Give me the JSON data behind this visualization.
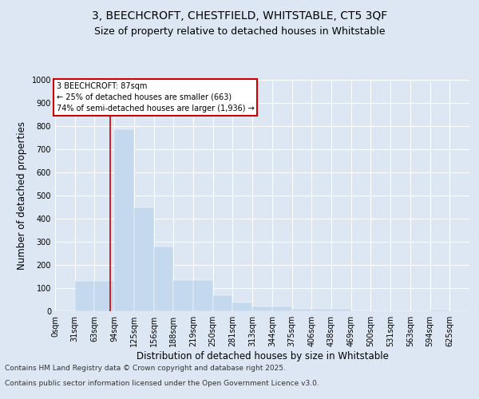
{
  "title_line1": "3, BEECHCROFT, CHESTFIELD, WHITSTABLE, CT5 3QF",
  "title_line2": "Size of property relative to detached houses in Whitstable",
  "xlabel": "Distribution of detached houses by size in Whitstable",
  "ylabel": "Number of detached properties",
  "categories": [
    "0sqm",
    "31sqm",
    "63sqm",
    "94sqm",
    "125sqm",
    "156sqm",
    "188sqm",
    "219sqm",
    "250sqm",
    "281sqm",
    "313sqm",
    "344sqm",
    "375sqm",
    "406sqm",
    "438sqm",
    "469sqm",
    "500sqm",
    "531sqm",
    "563sqm",
    "594sqm",
    "625sqm"
  ],
  "values": [
    5,
    130,
    130,
    785,
    450,
    280,
    133,
    133,
    70,
    38,
    22,
    22,
    12,
    12,
    12,
    5,
    0,
    0,
    0,
    8,
    0
  ],
  "bar_color": "#c5d9ee",
  "bar_edgecolor": "#c5d9ee",
  "vline_color": "#cc0000",
  "annotation_text": "3 BEECHCROFT: 87sqm\n← 25% of detached houses are smaller (663)\n74% of semi-detached houses are larger (1,936) →",
  "annotation_box_color": "#ffffff",
  "annotation_box_edgecolor": "#cc0000",
  "ylim": [
    0,
    1000
  ],
  "yticks": [
    0,
    100,
    200,
    300,
    400,
    500,
    600,
    700,
    800,
    900,
    1000
  ],
  "bg_color": "#dce7f3",
  "plot_bg_color": "#dce7f3",
  "footer_line1": "Contains HM Land Registry data © Crown copyright and database right 2025.",
  "footer_line2": "Contains public sector information licensed under the Open Government Licence v3.0.",
  "title_fontsize": 10,
  "subtitle_fontsize": 9,
  "tick_fontsize": 7,
  "xlabel_fontsize": 8.5,
  "ylabel_fontsize": 8.5,
  "footer_fontsize": 6.5,
  "vline_x": 87,
  "bin_width": 31.25
}
